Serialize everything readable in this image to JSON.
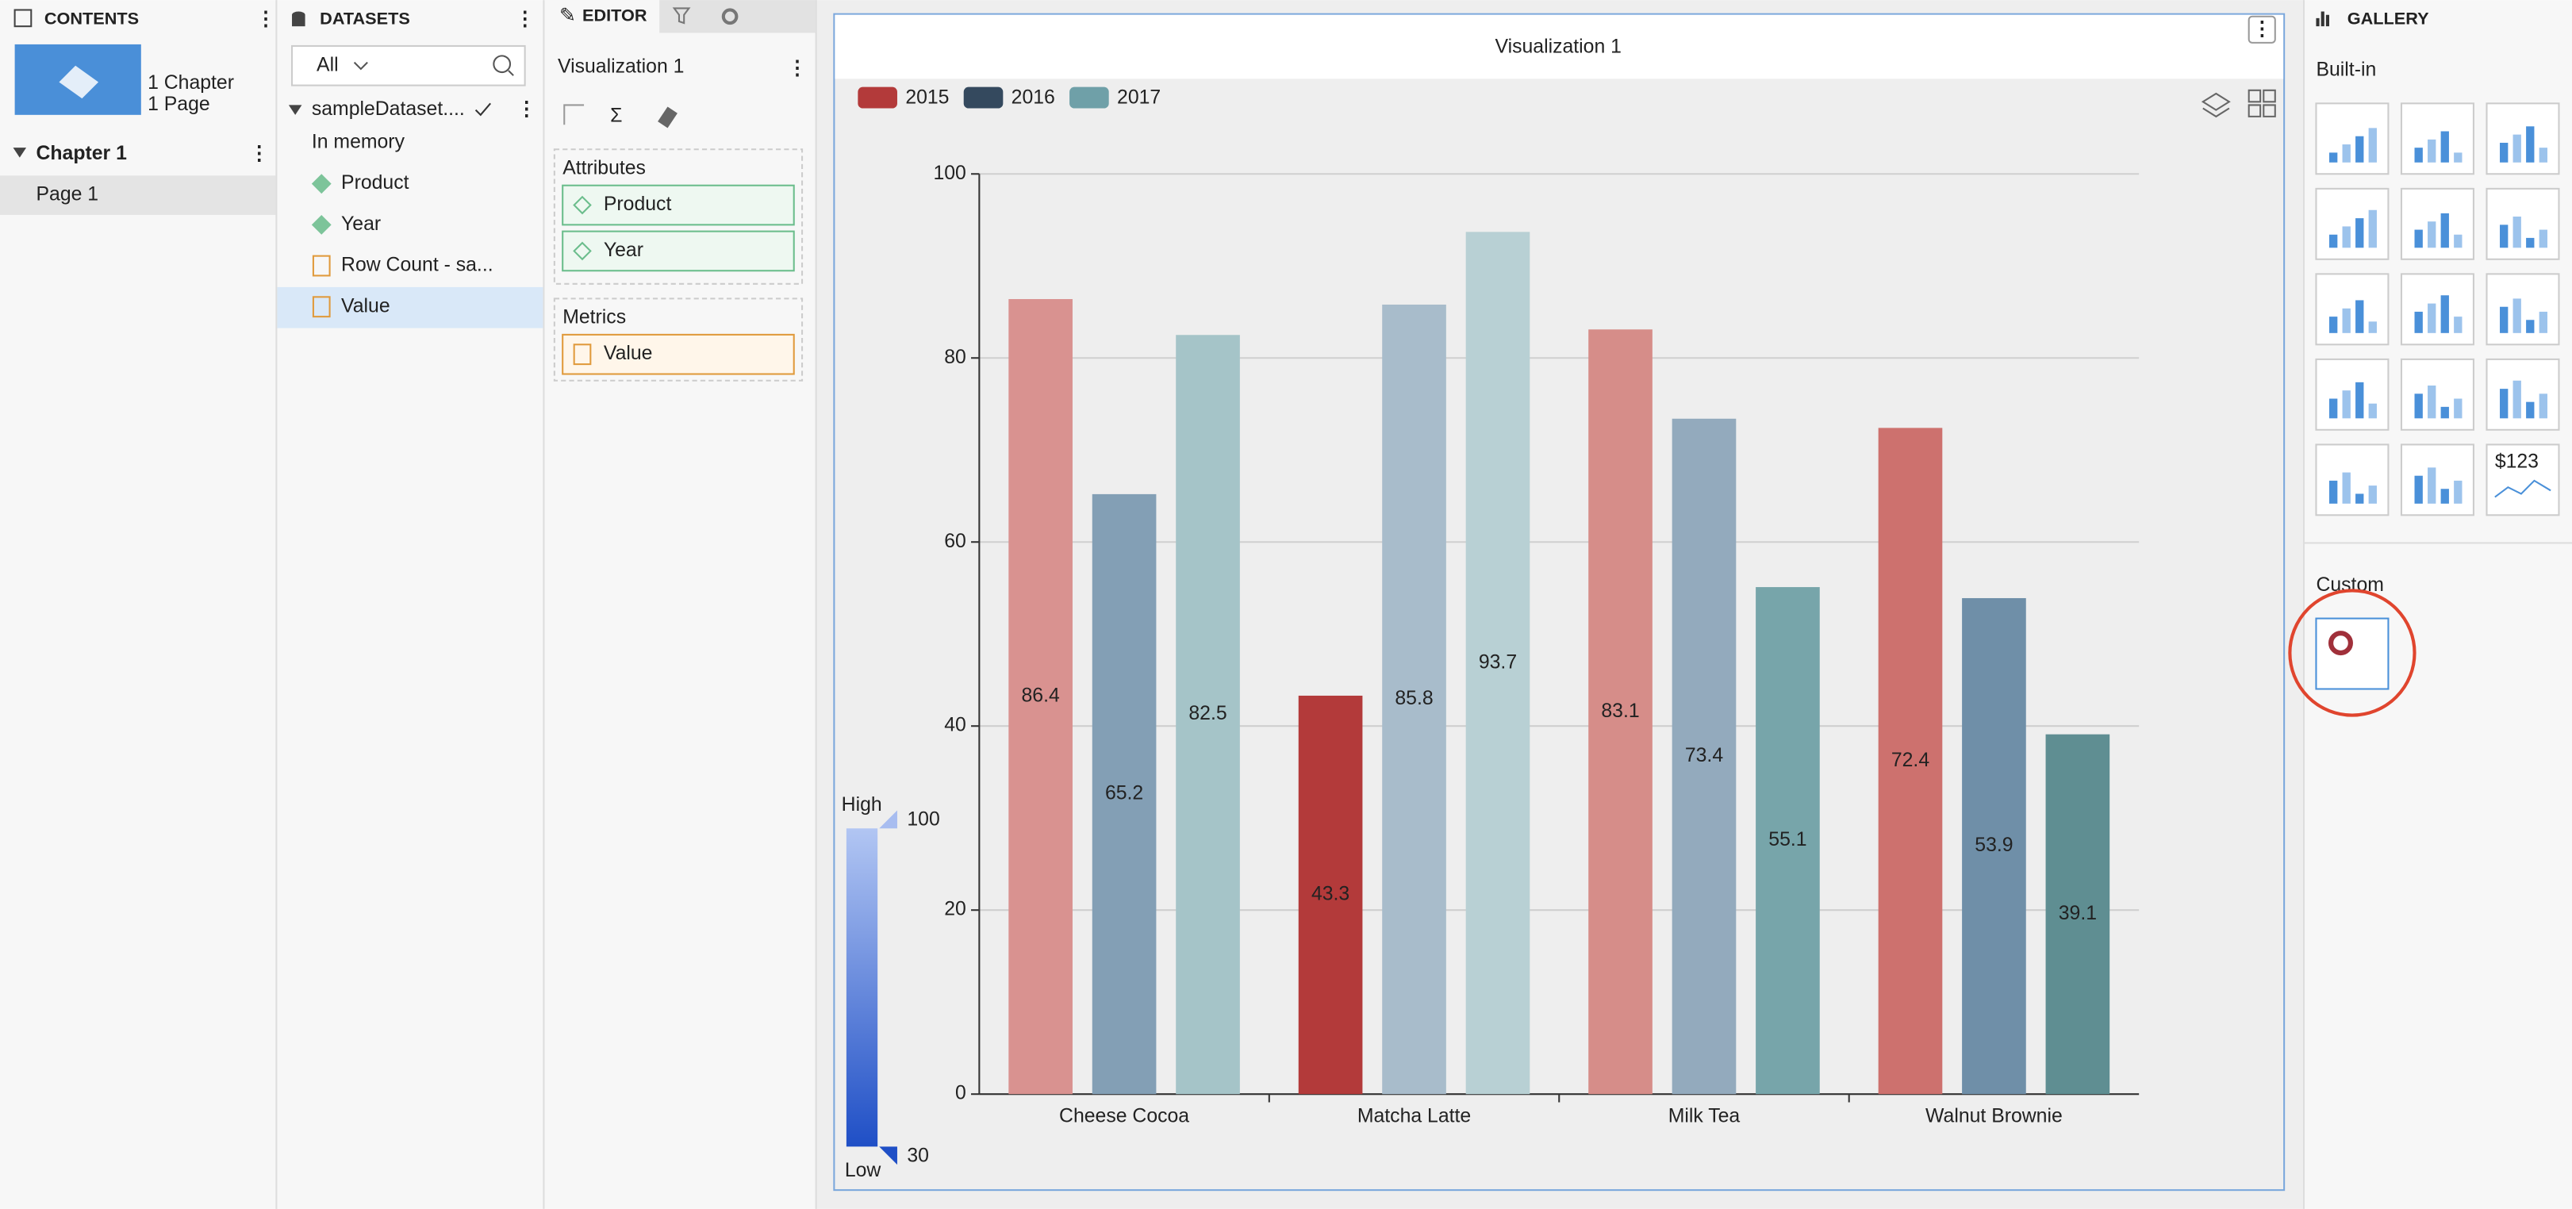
{
  "contents": {
    "title": "CONTENTS",
    "chapters": "1 Chapter",
    "pages": "1 Page",
    "chapter": "Chapter 1",
    "page": "Page 1"
  },
  "datasets": {
    "title": "DATASETS",
    "filter": "All",
    "dataset": "sampleDataset....",
    "storage": "In memory",
    "fields": [
      "Product",
      "Year",
      "Row Count - sa...",
      "Value"
    ]
  },
  "editor": {
    "tab": "EDITOR",
    "visualization": "Visualization 1",
    "attributes_label": "Attributes",
    "attributes": [
      "Product",
      "Year"
    ],
    "metrics_label": "Metrics",
    "metrics": [
      "Value"
    ]
  },
  "gallery": {
    "title": "GALLERY",
    "builtin": "Built-in",
    "custom": "Custom",
    "tile_text": "$123"
  },
  "chart_data": {
    "type": "bar",
    "title": "Visualization 1",
    "categories": [
      "Cheese Cocoa",
      "Matcha Latte",
      "Milk Tea",
      "Walnut Brownie"
    ],
    "series": [
      {
        "name": "2015",
        "color": "#b33a3a",
        "values": [
          86.4,
          43.3,
          83.1,
          72.4
        ],
        "colors": [
          "#d99290",
          "#b33a3a",
          "#d68d89",
          "#cd716e"
        ]
      },
      {
        "name": "2016",
        "color": "#34495e",
        "values": [
          65.2,
          85.8,
          73.4,
          53.9
        ],
        "colors": [
          "#839fb5",
          "#a8bccb",
          "#93aabd",
          "#6f8fa8"
        ]
      },
      {
        "name": "2017",
        "color": "#6fa0a8",
        "values": [
          82.5,
          93.7,
          55.1,
          39.1
        ],
        "colors": [
          "#a5c4c8",
          "#b8d0d4",
          "#77a5aa",
          "#5f8e92"
        ]
      }
    ],
    "ylim": [
      0,
      100
    ],
    "yticks": [
      0,
      20,
      40,
      60,
      80,
      100
    ],
    "grid": true,
    "color_legend": {
      "high": "High",
      "low": "Low",
      "max": 100,
      "min": 30
    }
  }
}
